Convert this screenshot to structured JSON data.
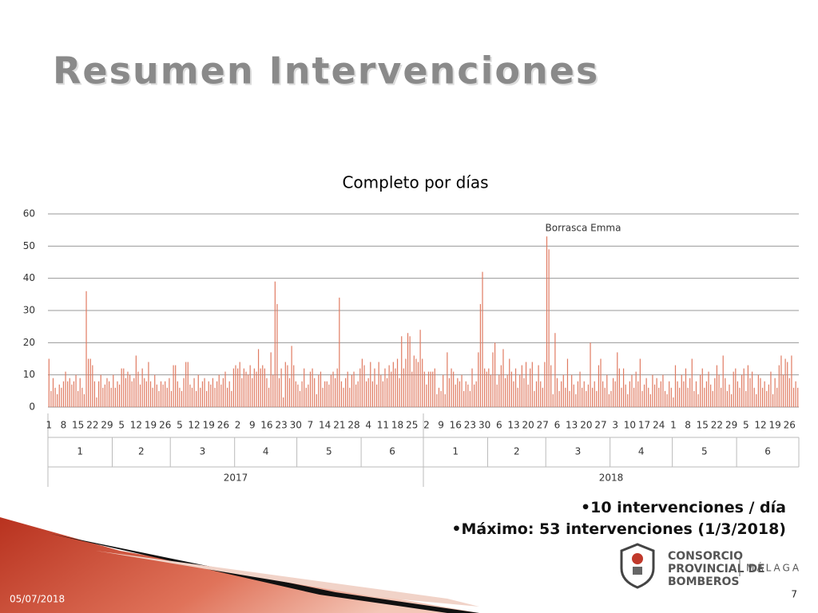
{
  "header": {
    "title": "Resumen Intervenciones"
  },
  "chart_data": {
    "type": "bar",
    "title": "Completo por días",
    "color": "#e07b62",
    "annotation": "Borrasca Emma",
    "ylim": [
      0,
      60
    ],
    "yticks": [
      0,
      10,
      20,
      30,
      40,
      50,
      60
    ],
    "grid": true,
    "years": [
      "2017",
      "2018"
    ],
    "months": [
      [
        "1",
        "2",
        "3",
        "4",
        "5",
        "6"
      ],
      [
        "1",
        "2",
        "3",
        "4",
        "5",
        "6"
      ]
    ],
    "days": [
      [
        [
          "1",
          null,
          null,
          null,
          null,
          null,
          null,
          "8",
          null,
          null,
          null,
          null,
          null,
          null,
          "15",
          null,
          null,
          null,
          null,
          null,
          null,
          "22",
          null,
          null,
          null,
          null,
          null,
          null,
          "29",
          null,
          null
        ],
        [
          null,
          null,
          null,
          null,
          "5",
          null,
          null,
          null,
          null,
          null,
          null,
          "12",
          null,
          null,
          null,
          null,
          null,
          null,
          "19",
          null,
          null,
          null,
          null,
          null,
          null,
          "26",
          null,
          null
        ],
        [
          null,
          null,
          null,
          null,
          "5",
          null,
          null,
          null,
          null,
          null,
          null,
          "12",
          null,
          null,
          null,
          null,
          null,
          null,
          "19",
          null,
          null,
          null,
          null,
          null,
          null,
          "26",
          null,
          null,
          null,
          null,
          null
        ],
        [
          null,
          "2",
          null,
          null,
          null,
          null,
          null,
          null,
          "9",
          null,
          null,
          null,
          null,
          null,
          null,
          "16",
          null,
          null,
          null,
          null,
          null,
          null,
          "23",
          null,
          null,
          null,
          null,
          null,
          null,
          "30"
        ],
        [
          null,
          null,
          null,
          null,
          null,
          null,
          "7",
          null,
          null,
          null,
          null,
          null,
          null,
          "14",
          null,
          null,
          null,
          null,
          null,
          null,
          "21",
          null,
          null,
          null,
          null,
          null,
          null,
          "28",
          null,
          null,
          null
        ],
        [
          null,
          null,
          null,
          "4",
          null,
          null,
          null,
          null,
          null,
          null,
          "11",
          null,
          null,
          null,
          null,
          null,
          null,
          "18",
          null,
          null,
          null,
          null,
          null,
          null,
          "25",
          null,
          null,
          null,
          null,
          null
        ]
      ],
      [
        [
          null,
          "2",
          null,
          null,
          null,
          null,
          null,
          null,
          "9",
          null,
          null,
          null,
          null,
          null,
          null,
          "16",
          null,
          null,
          null,
          null,
          null,
          null,
          "23",
          null,
          null,
          null,
          null,
          null,
          null,
          "30",
          null
        ],
        [
          null,
          null,
          null,
          null,
          null,
          "6",
          null,
          null,
          null,
          null,
          null,
          null,
          "13",
          null,
          null,
          null,
          null,
          null,
          null,
          "20",
          null,
          null,
          null,
          null,
          null,
          null,
          "27",
          null
        ],
        [
          null,
          null,
          null,
          null,
          null,
          "6",
          null,
          null,
          null,
          null,
          null,
          null,
          "13",
          null,
          null,
          null,
          null,
          null,
          null,
          "20",
          null,
          null,
          null,
          null,
          null,
          null,
          "27",
          null,
          null,
          null,
          null
        ],
        [
          null,
          null,
          "3",
          null,
          null,
          null,
          null,
          null,
          null,
          "10",
          null,
          null,
          null,
          null,
          null,
          null,
          "17",
          null,
          null,
          null,
          null,
          null,
          null,
          "24",
          null,
          null,
          null,
          null,
          null,
          null
        ],
        [
          "1",
          null,
          null,
          null,
          null,
          null,
          null,
          "8",
          null,
          null,
          null,
          null,
          null,
          null,
          "15",
          null,
          null,
          null,
          null,
          null,
          null,
          "22",
          null,
          null,
          null,
          null,
          null,
          null,
          "29",
          null,
          null
        ],
        [
          null,
          null,
          null,
          null,
          "5",
          null,
          null,
          null,
          null,
          null,
          null,
          "12",
          null,
          null,
          null,
          null,
          null,
          null,
          "19",
          null,
          null,
          null,
          null,
          null,
          null,
          "26",
          null,
          null,
          null,
          null
        ]
      ]
    ],
    "values": [
      [
        [
          15,
          5,
          9,
          6,
          4,
          7,
          6,
          8,
          11,
          8,
          9,
          7,
          8,
          10,
          5,
          9,
          6,
          4,
          36,
          15,
          15,
          13,
          8,
          3,
          8,
          10,
          6,
          7,
          9,
          8,
          6
        ],
        [
          10,
          6,
          8,
          7,
          12,
          12,
          9,
          11,
          10,
          8,
          9,
          16,
          11,
          7,
          12,
          9,
          8,
          14,
          8,
          6,
          10,
          7,
          5,
          8,
          7,
          8,
          6,
          9
        ],
        [
          5,
          13,
          13,
          8,
          6,
          5,
          9,
          14,
          14,
          7,
          6,
          9,
          5,
          10,
          6,
          8,
          9,
          5,
          8,
          7,
          9,
          6,
          8,
          10,
          7,
          9,
          11,
          6,
          8,
          5,
          12
        ],
        [
          13,
          12,
          14,
          9,
          12,
          11,
          10,
          13,
          9,
          12,
          11,
          18,
          12,
          13,
          12,
          9,
          6,
          17,
          10,
          39,
          32,
          9,
          12,
          3,
          14,
          13,
          9,
          19,
          13,
          8
        ],
        [
          7,
          5,
          8,
          12,
          6,
          7,
          11,
          12,
          9,
          4,
          10,
          11,
          6,
          8,
          8,
          7,
          10,
          11,
          9,
          12,
          34,
          8,
          6,
          9,
          11,
          6,
          10,
          11,
          7,
          8,
          12
        ],
        [
          15,
          13,
          8,
          9,
          14,
          8,
          12,
          7,
          14,
          10,
          8,
          12,
          9,
          13,
          11,
          14,
          12,
          15,
          9,
          22,
          12,
          15,
          23,
          22,
          11,
          16,
          15,
          14,
          24,
          15
        ]
      ],
      [
        [
          11,
          7,
          11,
          11,
          11,
          12,
          4,
          6,
          5,
          10,
          4,
          17,
          9,
          12,
          11,
          7,
          9,
          8,
          10,
          5,
          8,
          7,
          5,
          12,
          7,
          8,
          17,
          32,
          42,
          12,
          11
        ],
        [
          12,
          10,
          17,
          20,
          7,
          10,
          13,
          18,
          9,
          10,
          15,
          11,
          8,
          12,
          6,
          10,
          13,
          9,
          14,
          7,
          12,
          14,
          5,
          8,
          13,
          8,
          6,
          14
        ],
        [
          53,
          49,
          13,
          4,
          23,
          9,
          5,
          8,
          10,
          6,
          15,
          5,
          10,
          7,
          4,
          8,
          11,
          6,
          8,
          5,
          7,
          20,
          6,
          8,
          5,
          13,
          15,
          8,
          6,
          10,
          4
        ],
        [
          5,
          9,
          8,
          17,
          12,
          6,
          12,
          7,
          4,
          8,
          10,
          6,
          11,
          8,
          15,
          5,
          7,
          9,
          6,
          4,
          10,
          7,
          9,
          6,
          8,
          10,
          5,
          4,
          8,
          6
        ],
        [
          3,
          13,
          8,
          6,
          10,
          8,
          12,
          6,
          9,
          15,
          5,
          8,
          4,
          10,
          12,
          6,
          8,
          11,
          7,
          5,
          9,
          13,
          10,
          6,
          16,
          9,
          5,
          7,
          4,
          11,
          12
        ],
        [
          8,
          6,
          10,
          12,
          5,
          13,
          9,
          11,
          6,
          4,
          10,
          9,
          6,
          8,
          5,
          7,
          11,
          4,
          9,
          6,
          13,
          16,
          10,
          15,
          14,
          9,
          16,
          6,
          8,
          6
        ]
      ]
    ]
  },
  "notes": [
    "10 intervenciones / día",
    "Máximo: 53 intervenciones (1/3/2018)"
  ],
  "footer": {
    "date": "05/07/2018",
    "page": "7"
  },
  "logo": {
    "lines": [
      "CONSORCIO",
      "PROVINCIAL DE",
      "BOMBEROS"
    ],
    "place": "MÁLAGA"
  }
}
